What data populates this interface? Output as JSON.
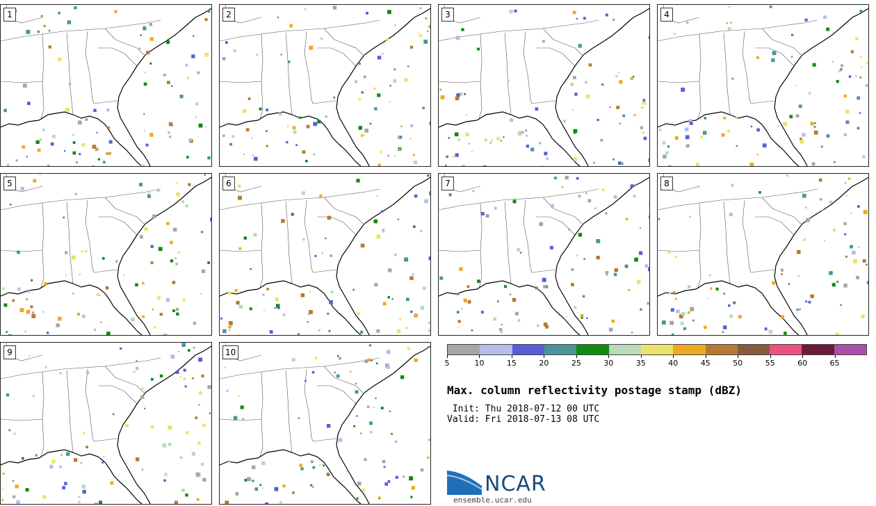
{
  "panels": [
    "1",
    "2",
    "3",
    "4",
    "5",
    "6",
    "7",
    "8",
    "9",
    "10"
  ],
  "legend": {
    "colors": [
      "#a6a6a6",
      "#b4bdea",
      "#5560d8",
      "#4a9498",
      "#118a11",
      "#b8dbb8",
      "#ece36a",
      "#eeaa22",
      "#b57a32",
      "#8a5a3c",
      "#ef5080",
      "#6a1a3a",
      "#aa50aa"
    ],
    "labels": [
      "5",
      "10",
      "15",
      "20",
      "25",
      "30",
      "35",
      "40",
      "45",
      "50",
      "55",
      "60",
      "65"
    ]
  },
  "title": "Max. column reflectivity postage stamp (dBZ)",
  "init": " Init: Thu 2018-07-12 00 UTC",
  "valid": "Valid: Fri 2018-07-13 08 UTC",
  "logo": {
    "text": "NCAR",
    "site": "ensemble.ucar.edu"
  },
  "colors": {
    "coast": "#000000",
    "border": "#555555"
  }
}
